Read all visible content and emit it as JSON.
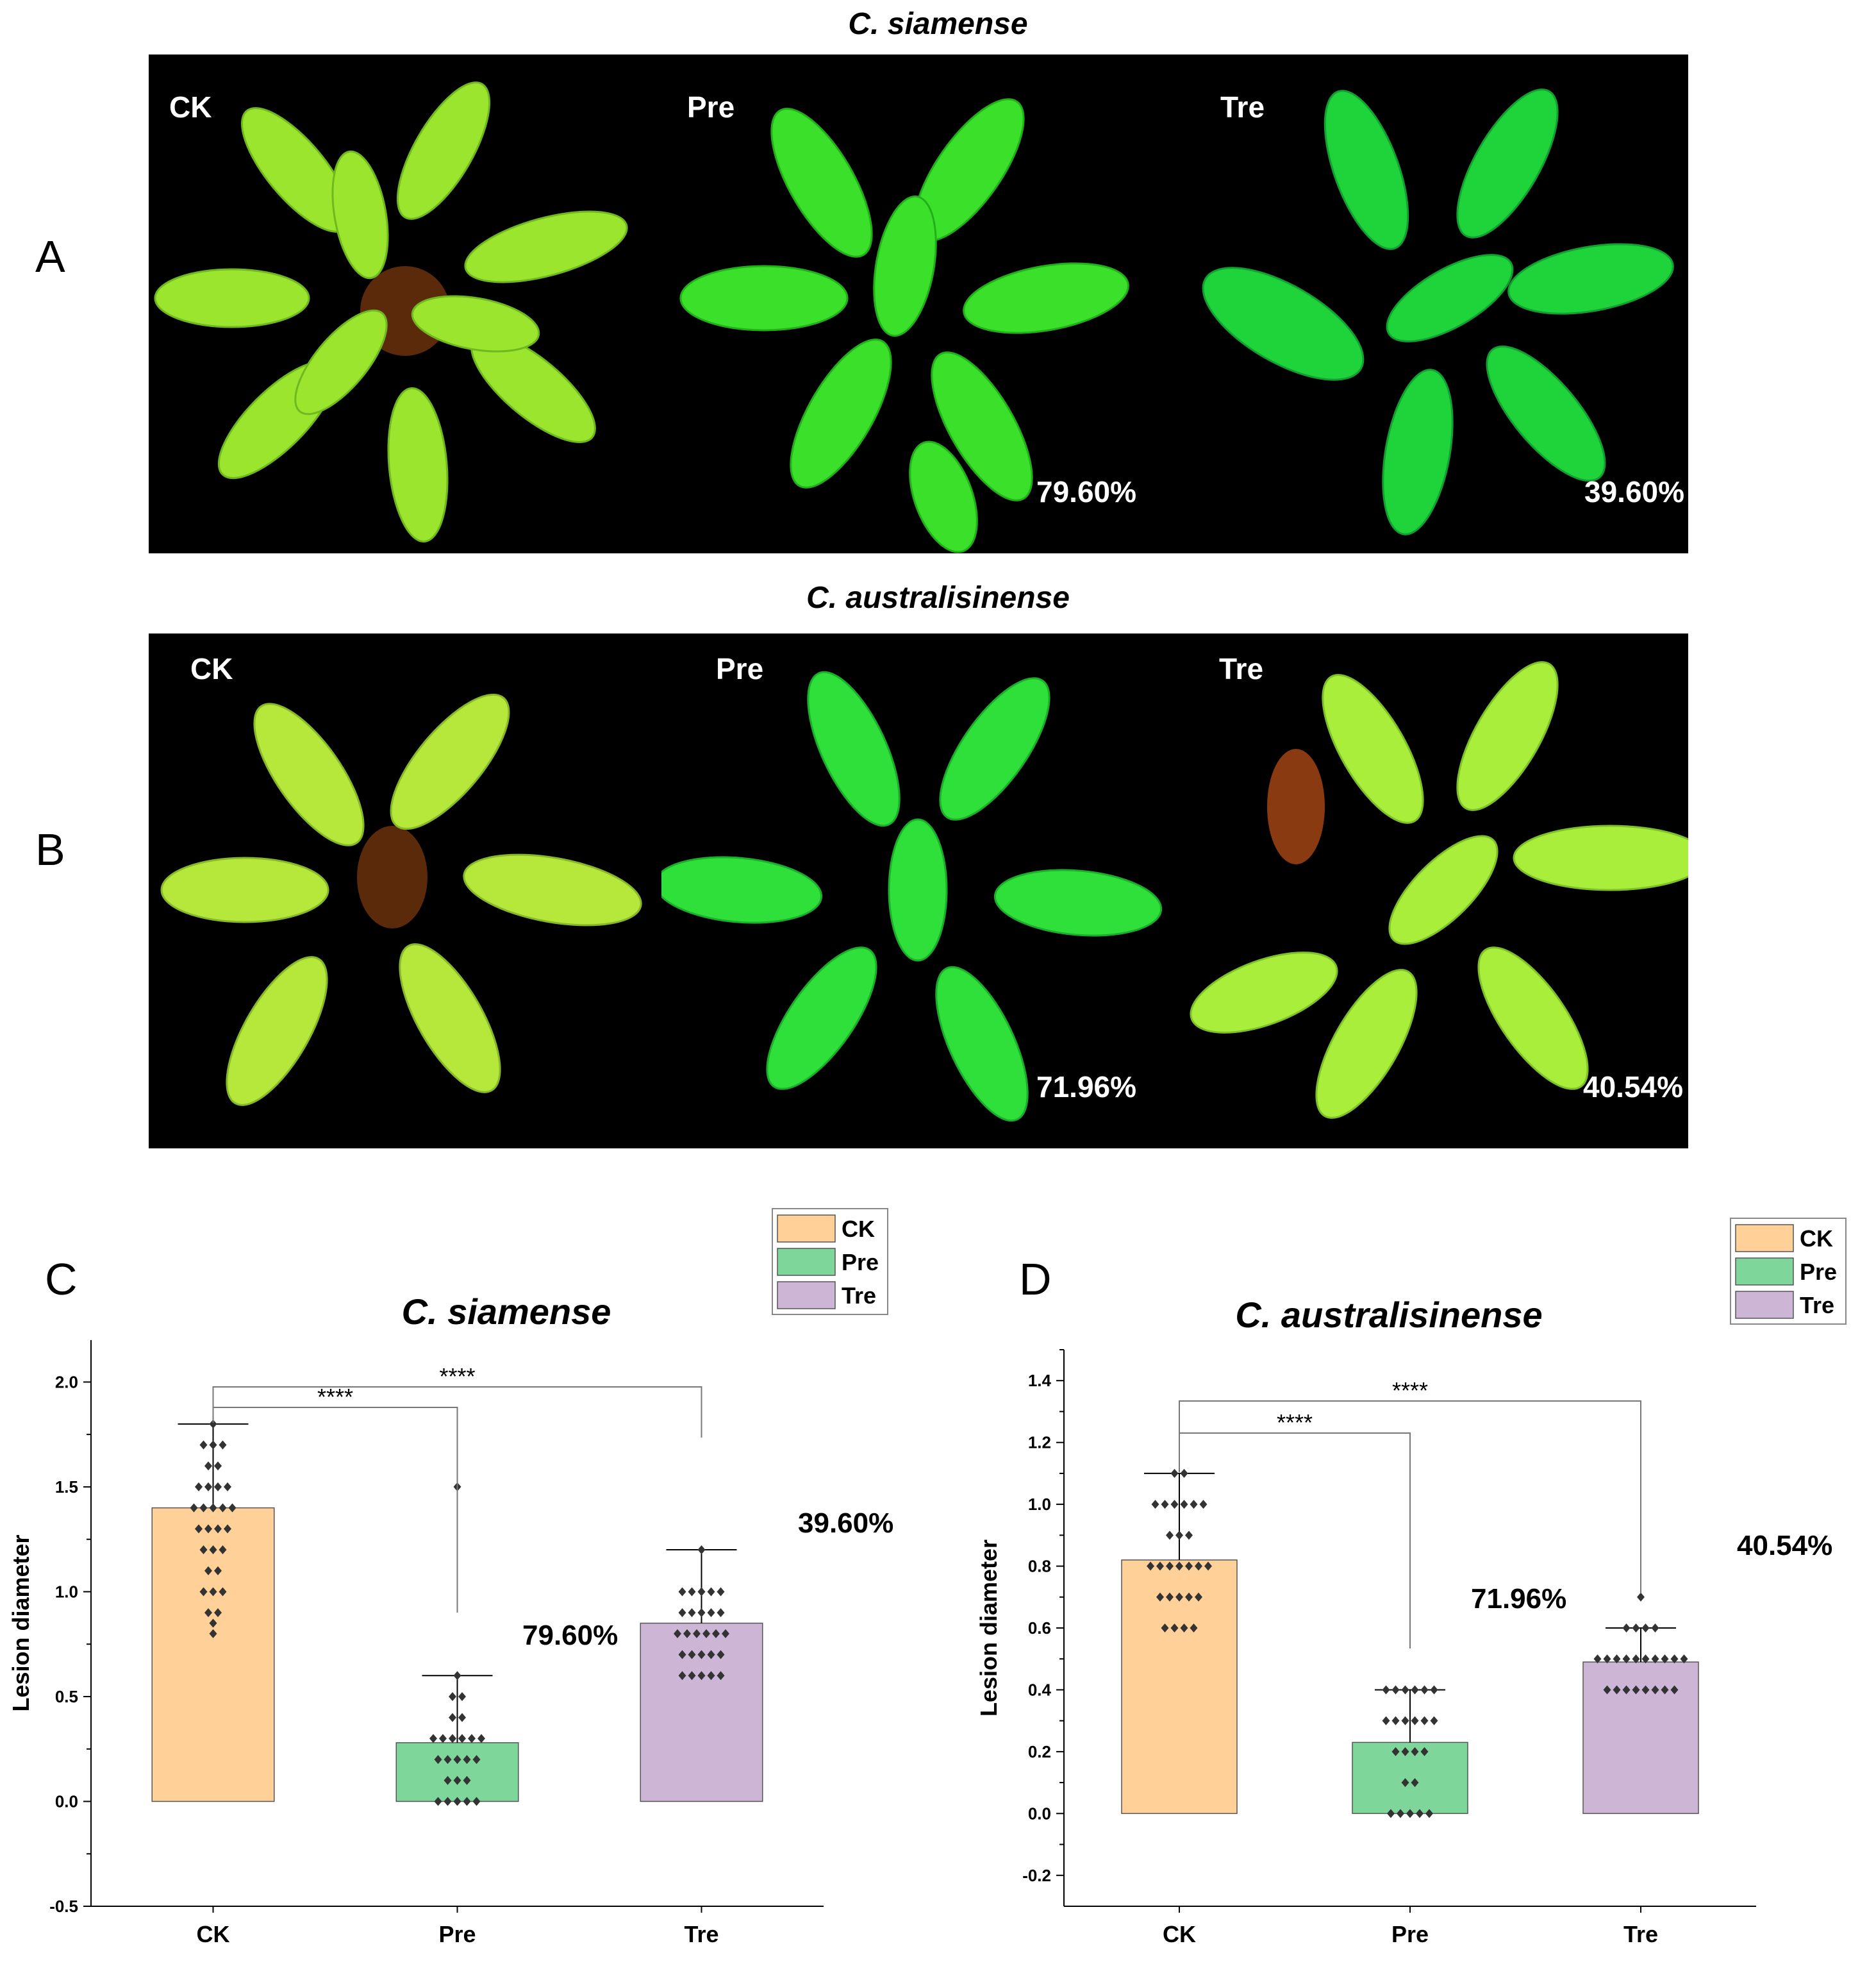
{
  "panels": {
    "A": {
      "letter": "A",
      "title": "C. siamense",
      "photos": [
        {
          "label": "CK",
          "percent": ""
        },
        {
          "label": "Pre",
          "percent": "79.60%"
        },
        {
          "label": "Tre",
          "percent": "39.60%"
        }
      ]
    },
    "B": {
      "letter": "B",
      "title": "C. australisinense",
      "photos": [
        {
          "label": "CK",
          "percent": ""
        },
        {
          "label": "Pre",
          "percent": "71.96%"
        },
        {
          "label": "Tre",
          "percent": "40.54%"
        }
      ]
    },
    "C": {
      "letter": "C"
    },
    "D": {
      "letter": "D"
    }
  },
  "chart_data": [
    {
      "type": "bar",
      "title": "C. siamense",
      "ylabel": "Lesion diameter",
      "xlabel": "",
      "categories": [
        "CK",
        "Pre",
        "Tre"
      ],
      "values": [
        1.4,
        0.28,
        0.85
      ],
      "error_upper": [
        1.8,
        0.6,
        1.2
      ],
      "error_lower": [
        1.4,
        0.28,
        0.85
      ],
      "ylim": [
        -0.5,
        2.2
      ],
      "yticks": [
        -0.5,
        0.0,
        0.5,
        1.0,
        1.5,
        2.0
      ],
      "ytick_labels": [
        "-0.5",
        "0.0",
        "0.5",
        "1.0",
        "1.5",
        "2.0"
      ],
      "colors": [
        "#FFD199",
        "#7FD69A",
        "#CDB5D6"
      ],
      "legend": {
        "position": "top-right",
        "entries": [
          "CK",
          "Pre",
          "Tre"
        ]
      },
      "points": [
        [
          0.8,
          0.85,
          0.9,
          0.9,
          1.0,
          1.0,
          1.0,
          1.1,
          1.1,
          1.2,
          1.2,
          1.2,
          1.3,
          1.3,
          1.3,
          1.3,
          1.4,
          1.4,
          1.4,
          1.4,
          1.4,
          1.5,
          1.5,
          1.5,
          1.5,
          1.6,
          1.6,
          1.7,
          1.7,
          1.7,
          1.8
        ],
        [
          0.0,
          0.0,
          0.0,
          0.0,
          0.0,
          0.1,
          0.1,
          0.1,
          0.2,
          0.2,
          0.2,
          0.2,
          0.2,
          0.3,
          0.3,
          0.3,
          0.3,
          0.3,
          0.3,
          0.4,
          0.4,
          0.5,
          0.5,
          0.6,
          1.5
        ],
        [
          0.6,
          0.6,
          0.6,
          0.6,
          0.6,
          0.7,
          0.7,
          0.7,
          0.7,
          0.7,
          0.8,
          0.8,
          0.8,
          0.8,
          0.8,
          0.8,
          0.9,
          0.9,
          0.9,
          0.9,
          0.9,
          1.0,
          1.0,
          1.0,
          1.0,
          1.0,
          1.2
        ]
      ],
      "significance": [
        {
          "from": 0,
          "to": 1,
          "label": "****"
        },
        {
          "from": 0,
          "to": 2,
          "label": "****"
        }
      ],
      "annotations": [
        "79.60%",
        "39.60%"
      ]
    },
    {
      "type": "bar",
      "title": "C. australisinense",
      "ylabel": "Lesion diameter",
      "xlabel": "",
      "categories": [
        "CK",
        "Pre",
        "Tre"
      ],
      "values": [
        0.82,
        0.23,
        0.49
      ],
      "error_upper": [
        1.1,
        0.4,
        0.6
      ],
      "error_lower": [
        0.82,
        0.23,
        0.49
      ],
      "ylim": [
        -0.3,
        1.5
      ],
      "yticks": [
        -0.2,
        0.0,
        0.2,
        0.4,
        0.6,
        0.8,
        1.0,
        1.2,
        1.4
      ],
      "ytick_labels": [
        "-0.2",
        "0.0",
        "0.2",
        "0.4",
        "0.6",
        "0.8",
        "1.0",
        "1.2",
        "1.4"
      ],
      "colors": [
        "#FFD199",
        "#7FD69A",
        "#CDB5D6"
      ],
      "legend": {
        "position": "top-right",
        "entries": [
          "CK",
          "Pre",
          "Tre"
        ]
      },
      "points": [
        [
          0.6,
          0.6,
          0.6,
          0.6,
          0.7,
          0.7,
          0.7,
          0.7,
          0.7,
          0.8,
          0.8,
          0.8,
          0.8,
          0.8,
          0.8,
          0.8,
          0.9,
          0.9,
          0.9,
          1.0,
          1.0,
          1.0,
          1.0,
          1.0,
          1.0,
          1.1,
          1.1
        ],
        [
          0.0,
          0.0,
          0.0,
          0.0,
          0.0,
          0.1,
          0.1,
          0.2,
          0.2,
          0.2,
          0.2,
          0.3,
          0.3,
          0.3,
          0.3,
          0.3,
          0.3,
          0.4,
          0.4,
          0.4,
          0.4,
          0.4,
          0.4
        ],
        [
          0.4,
          0.4,
          0.4,
          0.4,
          0.4,
          0.4,
          0.4,
          0.4,
          0.5,
          0.5,
          0.5,
          0.5,
          0.5,
          0.5,
          0.5,
          0.5,
          0.5,
          0.5,
          0.6,
          0.6,
          0.6,
          0.6,
          0.7
        ]
      ],
      "significance": [
        {
          "from": 0,
          "to": 1,
          "label": "****"
        },
        {
          "from": 0,
          "to": 2,
          "label": "****"
        }
      ],
      "annotations": [
        "71.96%",
        "40.54%"
      ]
    }
  ]
}
